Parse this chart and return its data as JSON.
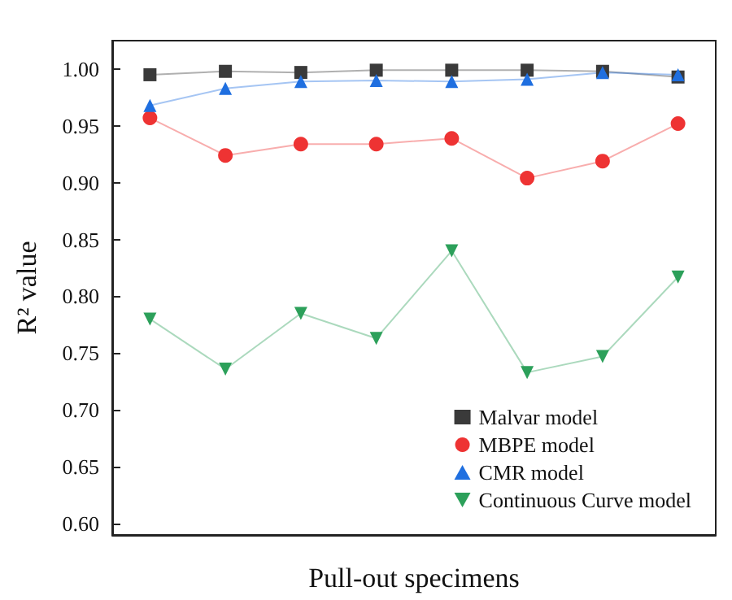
{
  "chart_data": {
    "type": "line",
    "xlabel": "Pull-out specimens",
    "ylabel": "R² value",
    "categories": [
      null,
      null,
      null,
      null,
      null,
      null,
      null,
      null
    ],
    "series": [
      {
        "name": "Malvar model",
        "color": "#3a3a3a",
        "marker": "square",
        "values": [
          0.995,
          0.998,
          0.997,
          0.999,
          0.999,
          0.999,
          0.998,
          0.993
        ]
      },
      {
        "name": "MBPE model",
        "color": "#ee3333",
        "marker": "circle",
        "values": [
          0.957,
          0.924,
          0.934,
          0.934,
          0.939,
          0.904,
          0.919,
          0.952
        ]
      },
      {
        "name": "CMR model",
        "color": "#1f6fe0",
        "marker": "triangle",
        "values": [
          0.968,
          0.983,
          0.989,
          0.99,
          0.989,
          0.991,
          0.997,
          0.995
        ]
      },
      {
        "name": "Continuous Curve model",
        "color": "#2ca05a",
        "marker": "triangle-down",
        "values": [
          0.78,
          0.736,
          0.785,
          0.763,
          0.84,
          0.733,
          0.747,
          0.817
        ]
      }
    ],
    "ylim": [
      0.59,
      1.025
    ],
    "yticks": [
      {
        "value": 0.6,
        "label": "0.60"
      },
      0.65,
      {
        "value": 0.7,
        "label": "0.70"
      },
      0.75,
      {
        "value": 0.8,
        "label": "0.80"
      },
      0.85,
      {
        "value": 0.9,
        "label": "0.90"
      },
      0.95,
      {
        "value": 1.0,
        "label": "1.00"
      }
    ],
    "grid": false,
    "legend": "bottom right"
  }
}
